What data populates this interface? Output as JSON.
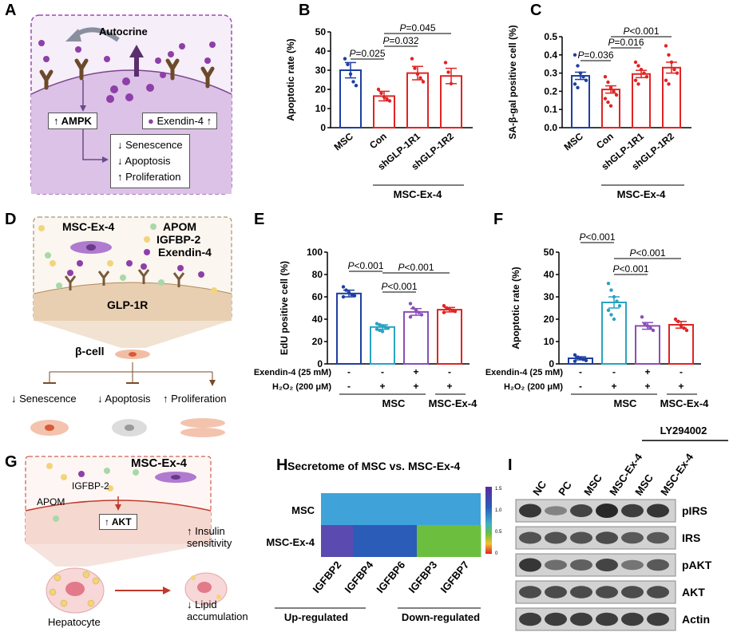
{
  "panels": {
    "A": {
      "label": "A",
      "autocrine": "Autocrine",
      "ampk": "↑ AMPK",
      "exendin": "Exendin-4 ↑",
      "effects": [
        "↓ Senescence",
        "↓ Apoptosis",
        "↑ Proliferation"
      ]
    },
    "B": {
      "label": "B",
      "ylabel": "Apoptotic rate (%)",
      "group": "MSC-Ex-4",
      "pvalues": [
        "P=0.025",
        "P=0.032",
        "P=0.045"
      ]
    },
    "C": {
      "label": "C",
      "ylabel": "SA-β-gal positive cell (%)",
      "group": "MSC-Ex-4",
      "pvalues": [
        "P=0.036",
        "P=0.016",
        "P<0.001"
      ]
    },
    "D": {
      "label": "D",
      "legend": [
        "MSC-Ex-4",
        "APOM",
        "IGFBP-2",
        "Exendin-4"
      ],
      "receptor": "GLP-1R",
      "cell": "β-cell",
      "effects": [
        "↓ Senescence",
        "↓ Apoptosis",
        "↑ Proliferation"
      ]
    },
    "E": {
      "label": "E",
      "ylabel": "EdU positive cell (%)",
      "pvalues": [
        "P<0.001",
        "P<0.001",
        "P<0.001"
      ],
      "row1_label": "Exendin-4 (25 mM)",
      "row2_label": "H₂O₂ (200 μM)",
      "row1": [
        "-",
        "-",
        "+",
        "-"
      ],
      "row2": [
        "-",
        "+",
        "+",
        "+"
      ],
      "groups": [
        "MSC",
        "MSC-Ex-4"
      ]
    },
    "F": {
      "label": "F",
      "ylabel": "Apoptotic rate (%)",
      "pvalues": [
        "P<0.001",
        "P<0.001",
        "P<0.001"
      ],
      "row1_label": "Exendin-4 (25 mM)",
      "row2_label": "H₂O₂ (200 μM)",
      "row1": [
        "-",
        "-",
        "+",
        "-"
      ],
      "row2": [
        "-",
        "+",
        "+",
        "+"
      ],
      "groups": [
        "MSC",
        "MSC-Ex-4"
      ]
    },
    "G": {
      "label": "G",
      "title": "MSC-Ex-4",
      "legend": [
        "IGFBP-2",
        "APOM"
      ],
      "akt": "↑ AKT",
      "effects": [
        "↑ Insulin sensitivity",
        "↓ Lipid accumulation"
      ],
      "cell": "Hepatocyte"
    },
    "H": {
      "label": "H",
      "title": "Secretome of MSC vs. MSC-Ex-4",
      "rows": [
        "MSC",
        "MSC-Ex-4"
      ],
      "cols": [
        "IGFBP2",
        "IGFBP4",
        "IGFBP6",
        "IGFBP3",
        "IGFBP7"
      ],
      "colorbar_ticks": [
        "1.5",
        "1.0",
        "0.5",
        "0"
      ],
      "up": "Up-regulated",
      "down": "Down-regulated",
      "colors": {
        "msc_row": "#3fa3d9",
        "ex4": [
          "#5b4bb0",
          "#2a5cb8",
          "#2a5cb8",
          "#6cbf3e",
          "#6cbf3e"
        ]
      }
    },
    "I": {
      "label": "I",
      "inhibitor": "LY294002",
      "lanes": [
        "NC",
        "PC",
        "MSC",
        "MSC-Ex-4",
        "MSC",
        "MSC-Ex-4"
      ],
      "blots": [
        "pIRS",
        "IRS",
        "pAKT",
        "AKT",
        "Actin"
      ]
    }
  },
  "chart_data": [
    {
      "type": "bar",
      "panel": "B",
      "categories": [
        "MSC",
        "Con",
        "shGLP-1R1",
        "shGLP-1R2"
      ],
      "values": [
        30,
        16.5,
        28.5,
        27
      ],
      "errors": [
        4,
        2.5,
        3.5,
        4
      ],
      "points": [
        [
          36,
          33,
          28,
          24,
          22
        ],
        [
          20,
          18,
          16,
          15,
          14
        ],
        [
          36,
          31,
          28,
          26,
          24
        ],
        [
          34,
          29,
          23
        ]
      ],
      "colors": [
        "#1e3fa0",
        "#e02424",
        "#e02424",
        "#e02424"
      ],
      "ylabel": "Apoptotic rate (%)",
      "ylim": [
        0,
        50
      ],
      "yticks": [
        0,
        10,
        20,
        30,
        40,
        50
      ],
      "group_label": "MSC-Ex-4"
    },
    {
      "type": "bar",
      "panel": "C",
      "categories": [
        "MSC",
        "Con",
        "shGLP-1R1",
        "shGLP-1R2"
      ],
      "values": [
        0.285,
        0.21,
        0.295,
        0.33
      ],
      "errors": [
        0.02,
        0.02,
        0.02,
        0.03
      ],
      "points": [
        [
          0.4,
          0.34,
          0.3,
          0.28,
          0.26,
          0.24,
          0.22
        ],
        [
          0.28,
          0.25,
          0.22,
          0.2,
          0.18,
          0.16,
          0.14,
          0.12
        ],
        [
          0.36,
          0.34,
          0.32,
          0.3,
          0.28,
          0.26,
          0.24
        ],
        [
          0.45,
          0.4,
          0.36,
          0.32,
          0.3,
          0.26,
          0.24
        ]
      ],
      "colors": [
        "#1e3fa0",
        "#e02424",
        "#e02424",
        "#e02424"
      ],
      "ylabel": "SA-β-gal positive cell (%)",
      "ylim": [
        0,
        0.5
      ],
      "yticks": [
        0.0,
        0.1,
        0.2,
        0.3,
        0.4,
        0.5
      ],
      "group_label": "MSC-Ex-4"
    },
    {
      "type": "bar",
      "panel": "E",
      "values": [
        63,
        33,
        46.5,
        48.5
      ],
      "errors": [
        3,
        2,
        3,
        2
      ],
      "points": [
        [
          69,
          66,
          64,
          62,
          61,
          60
        ],
        [
          36,
          35,
          34,
          33,
          32,
          31,
          30,
          29
        ],
        [
          54,
          50,
          48,
          46,
          44,
          42
        ],
        [
          52,
          50,
          49,
          48,
          47,
          46
        ]
      ],
      "colors": [
        "#1e3fa0",
        "#2aa3c2",
        "#8a4fb8",
        "#e02424"
      ],
      "ylabel": "EdU positive cell (%)",
      "ylim": [
        0,
        100
      ],
      "yticks": [
        0,
        20,
        40,
        60,
        80,
        100
      ]
    },
    {
      "type": "bar",
      "panel": "F",
      "values": [
        2.5,
        27.5,
        17,
        17.5
      ],
      "errors": [
        0.7,
        2.5,
        1.5,
        1.5
      ],
      "points": [
        [
          4,
          3,
          2.5,
          2,
          1.5,
          1.2
        ],
        [
          36,
          33,
          30,
          28,
          26,
          24,
          22,
          20
        ],
        [
          21,
          18,
          17,
          16,
          15
        ],
        [
          20,
          19,
          17,
          16,
          15
        ]
      ],
      "colors": [
        "#1e3fa0",
        "#2aa3c2",
        "#8a4fb8",
        "#e02424"
      ],
      "ylabel": "Apoptotic rate (%)",
      "ylim": [
        0,
        50
      ],
      "yticks": [
        0,
        10,
        20,
        30,
        40,
        50
      ]
    }
  ]
}
